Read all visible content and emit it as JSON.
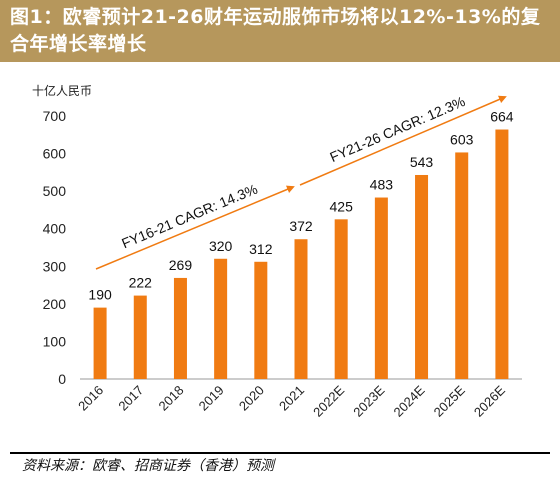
{
  "header": {
    "title": "图1：欧睿预计21-26财年运动服饰市场将以12%-13%的复合年增长率增长"
  },
  "chart_data": {
    "type": "bar",
    "ylabel": "十亿人民币",
    "ylim": [
      0,
      700
    ],
    "yticks": [
      0,
      100,
      200,
      300,
      400,
      500,
      600,
      700
    ],
    "grid": false,
    "categories": [
      "2016",
      "2017",
      "2018",
      "2019",
      "2020",
      "2021",
      "2022E",
      "2023E",
      "2024E",
      "2025E",
      "2026E"
    ],
    "values": [
      190,
      222,
      269,
      320,
      312,
      372,
      425,
      483,
      543,
      603,
      664
    ],
    "bar_color": "#f07b12",
    "annotations": [
      {
        "text": "FY16-21 CAGR: 14.3%",
        "from": "2016",
        "to": "2021"
      },
      {
        "text": "FY21-26 CAGR: 12.3%",
        "from": "2021",
        "to": "2026E"
      }
    ]
  },
  "footer": {
    "source": "资料来源：欧睿、招商证券（香港）预测"
  }
}
